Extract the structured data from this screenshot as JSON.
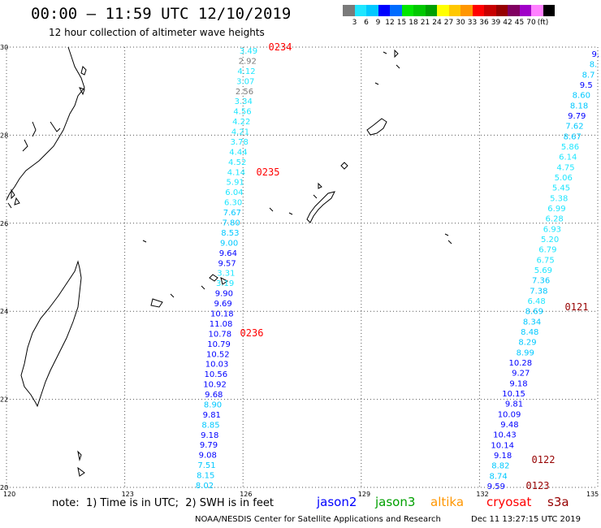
{
  "title": "00:00 – 11:59 UTC 12/10/2019",
  "subtitle": "12 hour collection of altimeter wave heights",
  "colorbar": {
    "colors": [
      "#7a7a7a",
      "#1ee6ff",
      "#00c8ff",
      "#0000ff",
      "#006cff",
      "#00e600",
      "#00c800",
      "#00a000",
      "#ffff00",
      "#ffc800",
      "#ff9600",
      "#ff0000",
      "#c80000",
      "#960000",
      "#800060",
      "#a000c8",
      "#ff80ff",
      "#000000"
    ],
    "labels": [
      "3",
      "6",
      "9",
      "12",
      "15",
      "18",
      "21",
      "24",
      "27",
      "30",
      "33",
      "36",
      "39",
      "42",
      "45",
      "70",
      "(ft)"
    ]
  },
  "axes": {
    "lon_labels": [
      "120",
      "123",
      "126",
      "129",
      "132",
      "135"
    ],
    "lat_labels": [
      "30",
      "28",
      "26",
      "24",
      "22",
      "20"
    ],
    "lon_range": [
      120,
      135
    ],
    "lat_range": [
      20,
      30
    ]
  },
  "tracks": [
    {
      "name": "track-a",
      "color": "#1ee6ff",
      "points": [
        {
          "v": "3.49",
          "c": "#1ee6ff"
        },
        {
          "v": "2.92",
          "c": "#7a7a7a"
        },
        {
          "v": "4.12",
          "c": "#1ee6ff"
        },
        {
          "v": "3.07",
          "c": "#1ee6ff"
        },
        {
          "v": "2.56",
          "c": "#7a7a7a"
        },
        {
          "v": "3.34",
          "c": "#1ee6ff"
        },
        {
          "v": "4.56",
          "c": "#1ee6ff"
        },
        {
          "v": "4.22",
          "c": "#1ee6ff"
        },
        {
          "v": "4.21",
          "c": "#1ee6ff"
        },
        {
          "v": "3.78",
          "c": "#1ee6ff"
        },
        {
          "v": "4.44",
          "c": "#1ee6ff"
        },
        {
          "v": "4.52",
          "c": "#1ee6ff"
        },
        {
          "v": "4.14",
          "c": "#1ee6ff"
        },
        {
          "v": "5.91",
          "c": "#1ee6ff"
        },
        {
          "v": "6.04",
          "c": "#1ee6ff"
        },
        {
          "v": "6.30",
          "c": "#1ee6ff"
        },
        {
          "v": "7.67",
          "c": "#00c8ff"
        },
        {
          "v": "7.80",
          "c": "#00c8ff"
        },
        {
          "v": "8.53",
          "c": "#00c8ff"
        },
        {
          "v": "9.00",
          "c": "#00c8ff"
        },
        {
          "v": "9.64",
          "c": "#0000ff"
        },
        {
          "v": "9.57",
          "c": "#0000ff"
        },
        {
          "v": "3.31",
          "c": "#1ee6ff"
        },
        {
          "v": "3.19",
          "c": "#1ee6ff"
        },
        {
          "v": "9.90",
          "c": "#0000ff"
        },
        {
          "v": "9.69",
          "c": "#0000ff"
        },
        {
          "v": "10.18",
          "c": "#0000ff"
        },
        {
          "v": "11.08",
          "c": "#0000ff"
        },
        {
          "v": "10.78",
          "c": "#0000ff"
        },
        {
          "v": "10.79",
          "c": "#0000ff"
        },
        {
          "v": "10.52",
          "c": "#0000ff"
        },
        {
          "v": "10.03",
          "c": "#0000ff"
        },
        {
          "v": "10.56",
          "c": "#0000ff"
        },
        {
          "v": "10.92",
          "c": "#0000ff"
        },
        {
          "v": "9.68",
          "c": "#0000ff"
        },
        {
          "v": "8.90",
          "c": "#00c8ff"
        },
        {
          "v": "9.81",
          "c": "#0000ff"
        },
        {
          "v": "8.85",
          "c": "#00c8ff"
        },
        {
          "v": "9.18",
          "c": "#0000ff"
        },
        {
          "v": "9.79",
          "c": "#0000ff"
        },
        {
          "v": "9.08",
          "c": "#0000ff"
        },
        {
          "v": "7.51",
          "c": "#00c8ff"
        },
        {
          "v": "8.15",
          "c": "#00c8ff"
        },
        {
          "v": "8.02",
          "c": "#00c8ff"
        }
      ],
      "times": [
        {
          "t": "0234",
          "c": "#ff0000"
        },
        {
          "t": "0235",
          "c": "#ff0000"
        },
        {
          "t": "0236",
          "c": "#ff0000"
        }
      ]
    },
    {
      "name": "track-b",
      "color": "#00c8ff",
      "points": [
        {
          "v": "9.",
          "c": "#0000ff"
        },
        {
          "v": "8.",
          "c": "#00c8ff"
        },
        {
          "v": "8.7",
          "c": "#00c8ff"
        },
        {
          "v": "9.5",
          "c": "#0000ff"
        },
        {
          "v": "8.60",
          "c": "#00c8ff"
        },
        {
          "v": "8.18",
          "c": "#00c8ff"
        },
        {
          "v": "9.79",
          "c": "#0000ff"
        },
        {
          "v": "7.62",
          "c": "#00c8ff"
        },
        {
          "v": "8.67",
          "c": "#00c8ff"
        },
        {
          "v": "5.86",
          "c": "#1ee6ff"
        },
        {
          "v": "6.14",
          "c": "#1ee6ff"
        },
        {
          "v": "4.75",
          "c": "#1ee6ff"
        },
        {
          "v": "5.06",
          "c": "#1ee6ff"
        },
        {
          "v": "5.45",
          "c": "#1ee6ff"
        },
        {
          "v": "5.38",
          "c": "#1ee6ff"
        },
        {
          "v": "6.99",
          "c": "#1ee6ff"
        },
        {
          "v": "6.28",
          "c": "#1ee6ff"
        },
        {
          "v": "6.93",
          "c": "#1ee6ff"
        },
        {
          "v": "5.20",
          "c": "#1ee6ff"
        },
        {
          "v": "6.79",
          "c": "#1ee6ff"
        },
        {
          "v": "6.75",
          "c": "#1ee6ff"
        },
        {
          "v": "5.69",
          "c": "#1ee6ff"
        },
        {
          "v": "7.36",
          "c": "#00c8ff"
        },
        {
          "v": "7.38",
          "c": "#00c8ff"
        },
        {
          "v": "6.48",
          "c": "#1ee6ff"
        },
        {
          "v": "8.69",
          "c": "#00c8ff"
        },
        {
          "v": "8.34",
          "c": "#00c8ff"
        },
        {
          "v": "8.48",
          "c": "#00c8ff"
        },
        {
          "v": "8.29",
          "c": "#00c8ff"
        },
        {
          "v": "8.99",
          "c": "#00c8ff"
        },
        {
          "v": "10.28",
          "c": "#0000ff"
        },
        {
          "v": "9.27",
          "c": "#0000ff"
        },
        {
          "v": "9.18",
          "c": "#0000ff"
        },
        {
          "v": "10.15",
          "c": "#0000ff"
        },
        {
          "v": "9.81",
          "c": "#0000ff"
        },
        {
          "v": "10.09",
          "c": "#0000ff"
        },
        {
          "v": "9.48",
          "c": "#0000ff"
        },
        {
          "v": "10.43",
          "c": "#0000ff"
        },
        {
          "v": "10.14",
          "c": "#0000ff"
        },
        {
          "v": "9.18",
          "c": "#0000ff"
        },
        {
          "v": "8.82",
          "c": "#00c8ff"
        },
        {
          "v": "8.74",
          "c": "#00c8ff"
        },
        {
          "v": "9.59",
          "c": "#0000ff"
        }
      ],
      "times": [
        {
          "t": "0121",
          "c": "#960000"
        },
        {
          "t": "0122",
          "c": "#960000"
        },
        {
          "t": "0123",
          "c": "#960000"
        }
      ]
    }
  ],
  "note": "note:  1) Time is in UTC;  2) SWH is in feet",
  "satellites": [
    {
      "name": "jason2",
      "color": "#0000ff"
    },
    {
      "name": "jason3",
      "color": "#00a000"
    },
    {
      "name": "altika",
      "color": "#ff9600"
    },
    {
      "name": "cryosat",
      "color": "#ff0000"
    },
    {
      "name": "s3a",
      "color": "#960000"
    }
  ],
  "credit": "NOAA/NESDIS Center for Satellite Applications and Research",
  "timestamp": "Dec 11 13:27:15 UTC 2019"
}
